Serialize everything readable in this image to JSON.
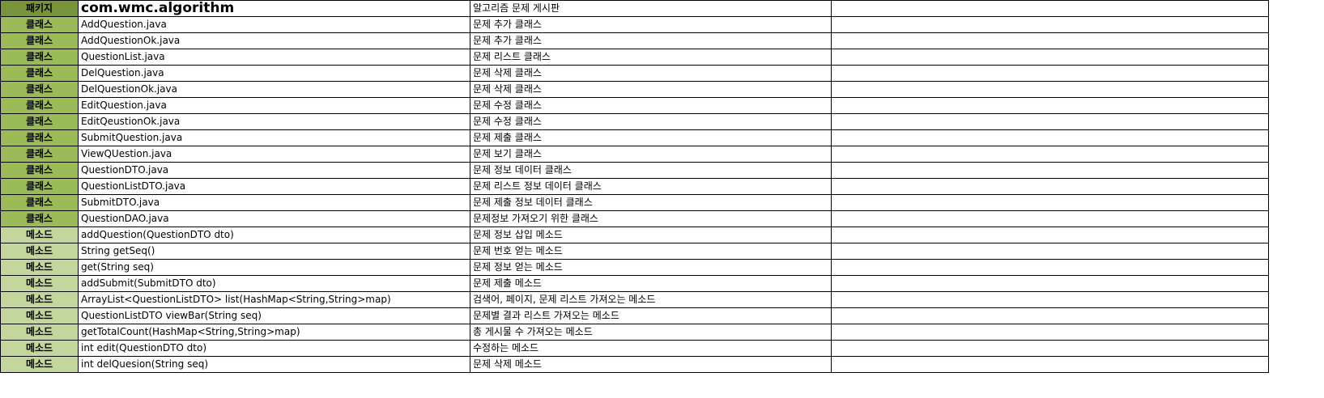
{
  "header": {
    "kind": "패키지",
    "name": "com.wmc.algorithm",
    "desc": "알고리즘 문제 게시판"
  },
  "rows": [
    {
      "kind": "클래스",
      "name": "AddQuestion.java",
      "desc": "문제 추가 클래스"
    },
    {
      "kind": "클래스",
      "name": "AddQuestionOk.java",
      "desc": "문제 추가 클래스"
    },
    {
      "kind": "클래스",
      "name": "QuestionList.java",
      "desc": "문제 리스트 클래스"
    },
    {
      "kind": "클래스",
      "name": "DelQuestion.java",
      "desc": "문제 삭제 클래스"
    },
    {
      "kind": "클래스",
      "name": "DelQuestionOk.java",
      "desc": "문제 삭제 클래스"
    },
    {
      "kind": "클래스",
      "name": "EditQuestion.java",
      "desc": "문제 수정 클래스"
    },
    {
      "kind": "클래스",
      "name": "EditQeustionOk.java",
      "desc": "문제 수정 클래스"
    },
    {
      "kind": "클래스",
      "name": "SubmitQuestion.java",
      "desc": "문제 제출 클래스"
    },
    {
      "kind": "클래스",
      "name": "ViewQUestion.java",
      "desc": "문제 보기 클래스"
    },
    {
      "kind": "클래스",
      "name": "QuestionDTO.java",
      "desc": "문제 정보 데이터 클래스"
    },
    {
      "kind": "클래스",
      "name": "QuestionListDTO.java",
      "desc": "문제 리스트 정보 데이터 클래스"
    },
    {
      "kind": "클래스",
      "name": "SubmitDTO.java",
      "desc": "문제 제출 정보 데이터 클래스"
    },
    {
      "kind": "클래스",
      "name": "QuestionDAO.java",
      "desc": "문제정보 가져오기 위한 클래스"
    },
    {
      "kind": "메소드",
      "name": "addQuestion(QuestionDTO dto)",
      "desc": "문제 정보 삽입 메소드"
    },
    {
      "kind": "메소드",
      "name": "String getSeq()",
      "desc": "문제 번호 얻는 메소드"
    },
    {
      "kind": "메소드",
      "name": "get(String seq)",
      "desc": "문제 정보 얻는 메소드"
    },
    {
      "kind": "메소드",
      "name": "addSubmit(SubmitDTO dto)",
      "desc": "문제 제출 메소드"
    },
    {
      "kind": "메소드",
      "name": "ArrayList<QuestionListDTO>  list(HashMap<String,String>map)",
      "desc": "검색어, 페이지, 문제 리스트 가져오는 메소드"
    },
    {
      "kind": "메소드",
      "name": "QuestionListDTO viewBar(String seq)",
      "desc": "문제별 결과 리스트 가져오는 메소드"
    },
    {
      "kind": "메소드",
      "name": "getTotalCount(HashMap<String,String>map)",
      "desc": "총 게시물 수 가져오는 메소드"
    },
    {
      "kind": "메소드",
      "name": "int edit(QuestionDTO dto)",
      "desc": "수정하는 메소드"
    },
    {
      "kind": "메소드",
      "name": "int delQuesion(String seq)",
      "desc": "문제 삭제 메소드"
    }
  ],
  "colors": {
    "package": "#77933c",
    "class": "#9bbb59",
    "method": "#c3d69b"
  }
}
